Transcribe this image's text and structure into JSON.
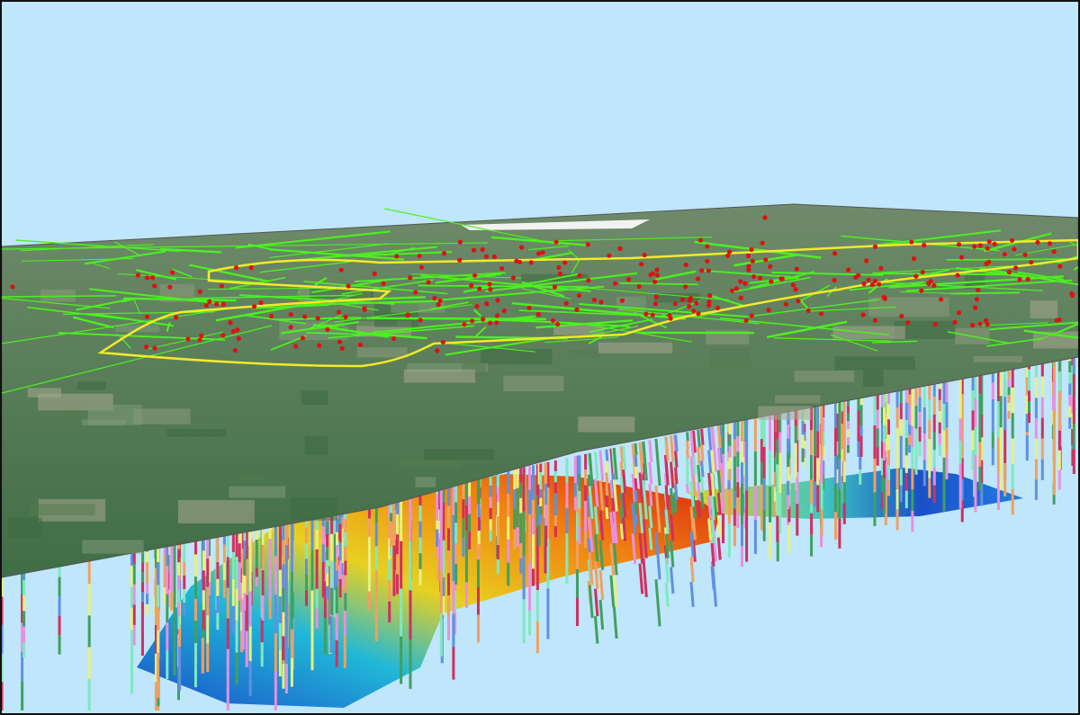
{
  "scene": {
    "sky_color": "#bfe6fb",
    "terrain_color": "#4c7a52",
    "boundary_color": "#f2ea2a",
    "network_color": "#4cf020",
    "point_color": "#e01010",
    "surface_gradient": [
      "#1a4fc8",
      "#20b8d8",
      "#e8d020",
      "#f08010",
      "#d82010"
    ],
    "borehole_colors": [
      "#e890e0",
      "#e8f080",
      "#80e8c0",
      "#6090e0",
      "#f0a060",
      "#d03060",
      "#40a060"
    ],
    "icons": [
      "terrain-surface",
      "geological-surface",
      "borehole",
      "pipeline-network",
      "survey-point",
      "boundary-outline"
    ]
  }
}
